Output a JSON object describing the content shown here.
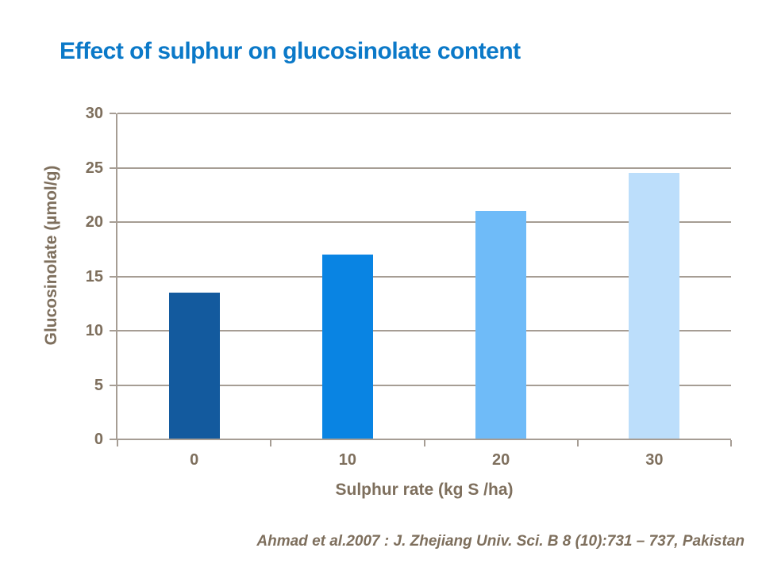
{
  "slide": {
    "title": "Effect of sulphur on glucosinolate content",
    "footer_citation": "Ahmad et al.2007 : J. Zhejiang Univ. Sci. B 8 (10):731 – 737, Pakistan"
  },
  "colors": {
    "background": "#FFFFFF",
    "title_text": "#0B79C8",
    "axis_text": "#7E6F5D",
    "grid_and_axis_lines": "#A69D94",
    "bar_colors": [
      "#135A9E",
      "#0984E3",
      "#6FBBF8",
      "#BCDEFB"
    ]
  },
  "chart_data": {
    "type": "bar",
    "title": "Effect of sulphur on glucosinolate content",
    "categories": [
      "0",
      "10",
      "20",
      "30"
    ],
    "values": [
      13.5,
      17,
      21,
      24.5
    ],
    "bar_colors": [
      "#135A9E",
      "#0984E3",
      "#6FBBF8",
      "#BCDEFB"
    ],
    "xlabel": "Sulphur rate (kg S /ha)",
    "ylabel": "Glucosinolate (µmol/g)",
    "ylim": [
      0,
      30
    ],
    "yticks": [
      0,
      5,
      10,
      15,
      20,
      25,
      30
    ],
    "grid": true,
    "legend_position": "none"
  }
}
